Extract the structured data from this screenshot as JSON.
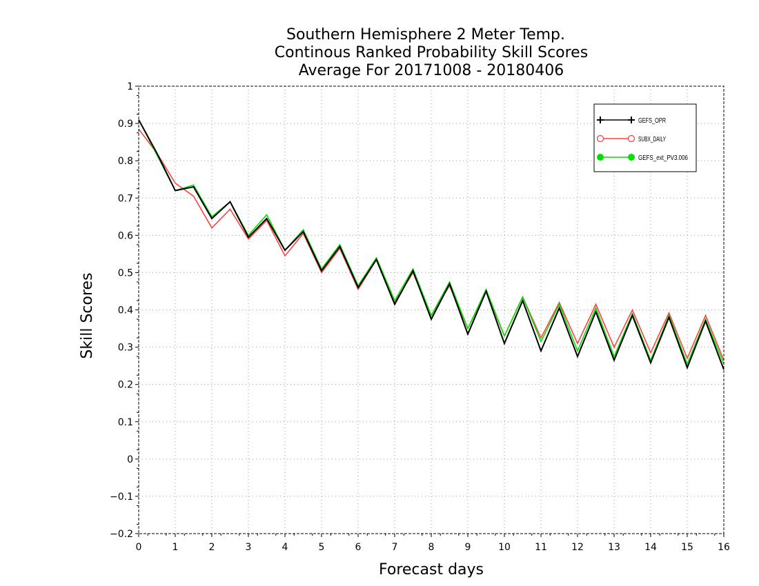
{
  "chart_data": {
    "type": "line",
    "title": [
      "Southern Hemisphere 2 Meter Temp.",
      "Continous Ranked Probability Skill Scores",
      "Average For 20171008 - 20180406"
    ],
    "xlabel": "Forecast days",
    "ylabel": "Skill Scores",
    "xlim": [
      0,
      16
    ],
    "ylim": [
      -0.2,
      1
    ],
    "xticks": [
      "0",
      "1",
      "2",
      "3",
      "4",
      "5",
      "6",
      "7",
      "8",
      "9",
      "10",
      "11",
      "12",
      "13",
      "14",
      "15",
      "16"
    ],
    "yticks": [
      "1",
      "0.9",
      "0.8",
      "0.7",
      "0.6",
      "0.5",
      "0.4",
      "0.3",
      "0.2",
      "0.1",
      "0",
      "−0.1",
      "−0.2"
    ],
    "grid": true,
    "legend_position": "top-right",
    "x": [
      0,
      0.5,
      1,
      1.5,
      2,
      2.5,
      3,
      3.5,
      4,
      4.5,
      5,
      5.5,
      6,
      6.5,
      7,
      7.5,
      8,
      8.5,
      9,
      9.5,
      10,
      10.5,
      11,
      11.5,
      12,
      12.5,
      13,
      13.5,
      14,
      14.5,
      15,
      15.5,
      16
    ],
    "series": [
      {
        "name": "GEFS_OPR",
        "color": "#000000",
        "marker": "plus",
        "values": [
          0.91,
          0.82,
          0.72,
          0.73,
          0.645,
          0.69,
          0.595,
          0.645,
          0.56,
          0.61,
          0.505,
          0.57,
          0.46,
          0.535,
          0.415,
          0.505,
          0.375,
          0.47,
          0.335,
          0.45,
          0.31,
          0.425,
          0.29,
          0.405,
          0.275,
          0.395,
          0.265,
          0.385,
          0.258,
          0.38,
          0.245,
          0.37,
          0.24
        ]
      },
      {
        "name": "SUBX_DAILY",
        "color": "#ff4040",
        "marker": "open-circle",
        "values": [
          0.885,
          0.82,
          0.74,
          0.705,
          0.62,
          0.67,
          0.59,
          0.64,
          0.545,
          0.605,
          0.5,
          0.565,
          0.455,
          0.535,
          0.42,
          0.5,
          0.385,
          0.465,
          0.35,
          0.45,
          0.33,
          0.435,
          0.325,
          0.42,
          0.31,
          0.415,
          0.3,
          0.4,
          0.285,
          0.392,
          0.27,
          0.385,
          0.265
        ]
      },
      {
        "name": "GEFS_ext_PV3.006",
        "color": "#00e000",
        "marker": "filled-circle",
        "values": [
          0.91,
          0.815,
          0.72,
          0.735,
          0.65,
          0.69,
          0.6,
          0.655,
          0.56,
          0.615,
          0.51,
          0.575,
          0.465,
          0.54,
          0.425,
          0.51,
          0.385,
          0.475,
          0.35,
          0.455,
          0.33,
          0.435,
          0.315,
          0.415,
          0.29,
          0.405,
          0.275,
          0.39,
          0.265,
          0.385,
          0.255,
          0.375,
          0.255
        ]
      }
    ]
  }
}
